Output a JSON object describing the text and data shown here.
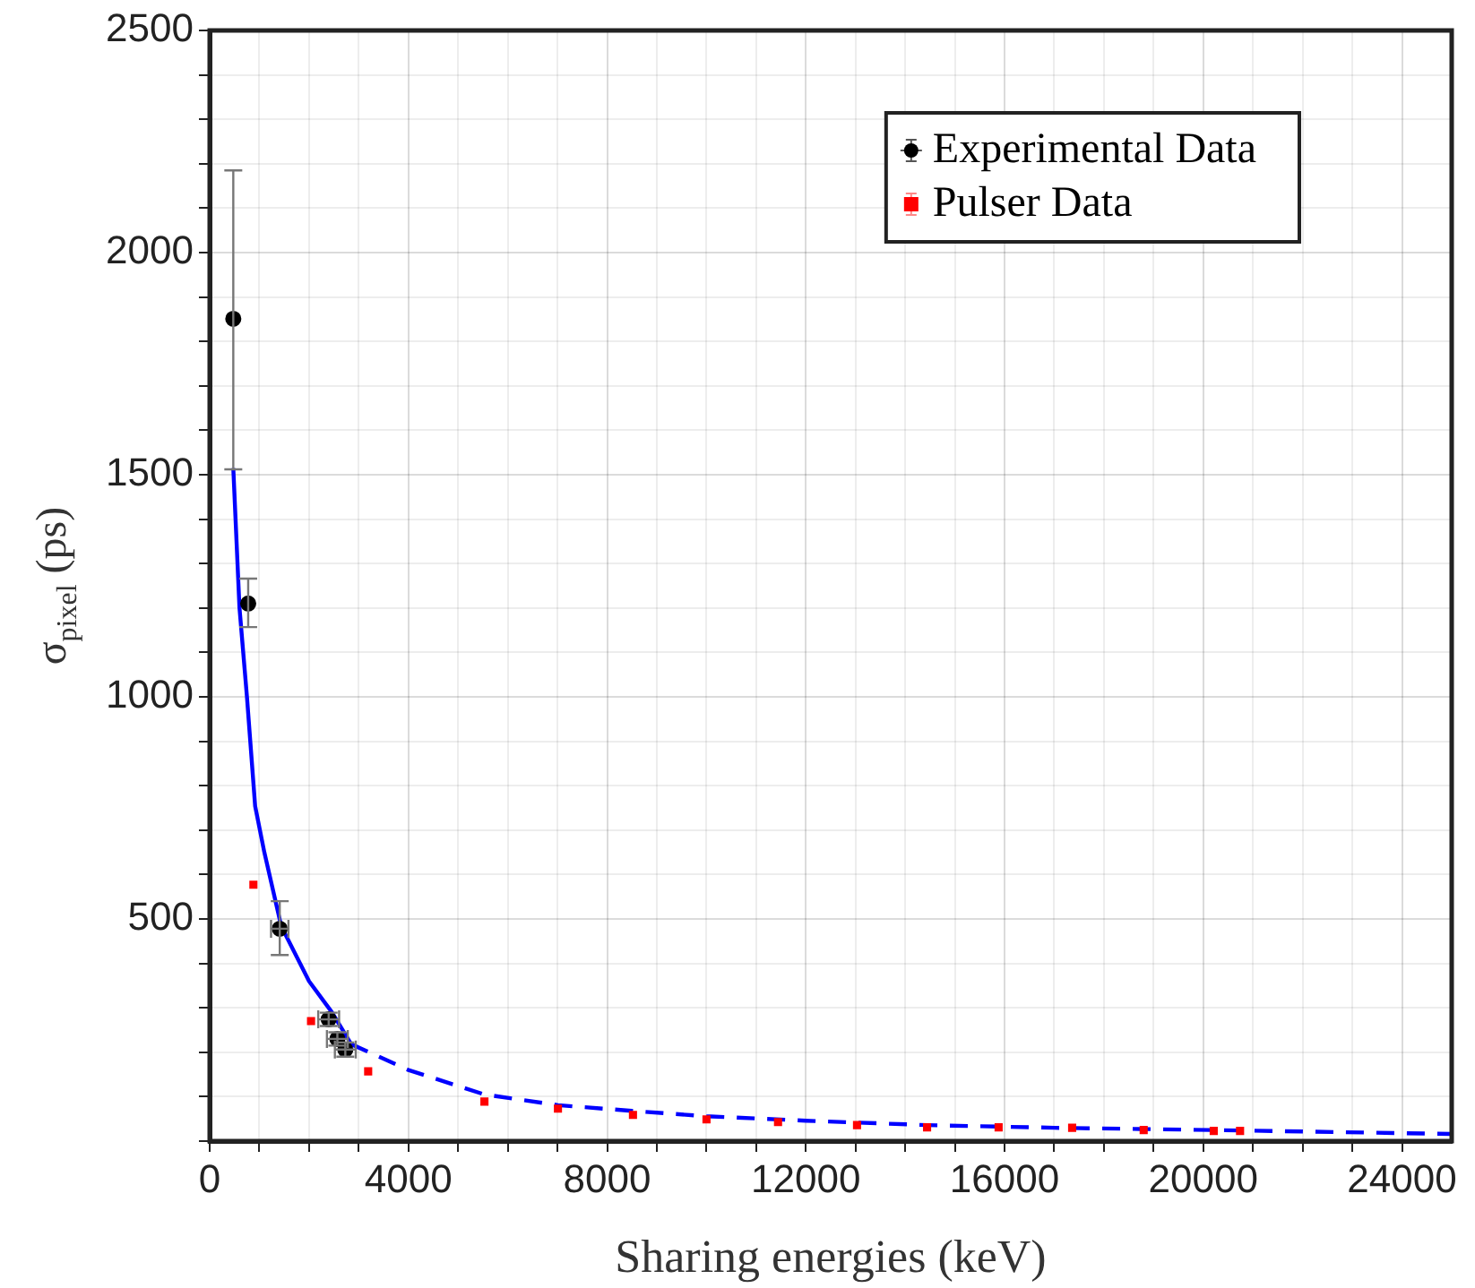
{
  "chart_data": {
    "type": "scatter",
    "xlabel": "Sharing energies (keV)",
    "ylabel": "σ$_{pixel}$ (ps)",
    "xlim": [
      0,
      25000
    ],
    "ylim": [
      0,
      2500
    ],
    "xticks": [
      0,
      {
        "value": 1000,
        "label": null
      },
      {
        "value": 2000,
        "label": null
      },
      {
        "value": 3000,
        "label": null
      },
      4000,
      {
        "value": 5000,
        "label": null
      },
      {
        "value": 6000,
        "label": null
      },
      {
        "value": 7000,
        "label": null
      },
      8000,
      {
        "value": 9000,
        "label": null
      },
      {
        "value": 10000,
        "label": null
      },
      {
        "value": 11000,
        "label": null
      },
      12000,
      {
        "value": 13000,
        "label": null
      },
      {
        "value": 14000,
        "label": null
      },
      {
        "value": 15000,
        "label": null
      },
      16000,
      {
        "value": 17000,
        "label": null
      },
      {
        "value": 18000,
        "label": null
      },
      {
        "value": 19000,
        "label": null
      },
      20000,
      {
        "value": 21000,
        "label": null
      },
      {
        "value": 22000,
        "label": null
      },
      {
        "value": 23000,
        "label": null
      },
      24000
    ],
    "yticks": [
      {
        "value": 0,
        "label": null
      },
      {
        "value": 100,
        "label": null
      },
      {
        "value": 200,
        "label": null
      },
      {
        "value": 300,
        "label": null
      },
      {
        "value": 400,
        "label": null
      },
      500,
      {
        "value": 600,
        "label": null
      },
      {
        "value": 700,
        "label": null
      },
      {
        "value": 800,
        "label": null
      },
      {
        "value": 900,
        "label": null
      },
      1000,
      {
        "value": 1100,
        "label": null
      },
      {
        "value": 1200,
        "label": null
      },
      {
        "value": 1300,
        "label": null
      },
      {
        "value": 1400,
        "label": null
      },
      1500,
      {
        "value": 1600,
        "label": null
      },
      {
        "value": 1700,
        "label": null
      },
      {
        "value": 1800,
        "label": null
      },
      {
        "value": 1900,
        "label": null
      },
      2000,
      {
        "value": 2100,
        "label": null
      },
      {
        "value": 2200,
        "label": null
      },
      {
        "value": 2300,
        "label": null
      },
      {
        "value": 2400,
        "label": null
      },
      2500
    ],
    "grid": true,
    "legend": "top right",
    "series": [
      {
        "name": "Experimental Data",
        "color": "#000000",
        "marker": "circle",
        "x": [
          475,
          775,
          1410,
          2395,
          2570,
          2730
        ],
        "values": [
          1851,
          1210,
          478,
          274,
          230,
          206
        ],
        "errors": [
          [
            1512,
            2185
          ],
          [
            1157,
            1266
          ],
          [
            419,
            540
          ],
          [
            259,
            289
          ],
          [
            215,
            245
          ],
          [
            190,
            222
          ]
        ],
        "xerrors": [
          null,
          null,
          175,
          210,
          210,
          210
        ]
      },
      {
        "name": "Pulser Data",
        "color": "#ff0000",
        "marker": "square",
        "x": [
          880,
          2040,
          3190,
          5530,
          7010,
          8520,
          10000,
          11440,
          13030,
          14440,
          15880,
          17360,
          18800,
          20210,
          20740
        ],
        "values": [
          577,
          270,
          157,
          89,
          73,
          59,
          49,
          43,
          36,
          31,
          31,
          30,
          25,
          23,
          23
        ]
      },
      {
        "type": "line",
        "color": "#0000ff",
        "marker": "none",
        "line_style": "solid",
        "x": [
          475,
          600,
          750,
          915,
          1100,
          1440,
          2000,
          2460,
          2850
        ],
        "values": [
          1515,
          1200,
          1000,
          754,
          650,
          484,
          360,
          290,
          218
        ]
      },
      {
        "type": "line",
        "color": "#0000ff",
        "marker": "none",
        "line_style": "dashed",
        "x": [
          2850,
          4000,
          5530,
          7010,
          8500,
          10000,
          12000,
          14440,
          17000,
          20740,
          25000
        ],
        "values": [
          218,
          160,
          105,
          81,
          68,
          56,
          46,
          36,
          30,
          24,
          16
        ]
      }
    ]
  }
}
